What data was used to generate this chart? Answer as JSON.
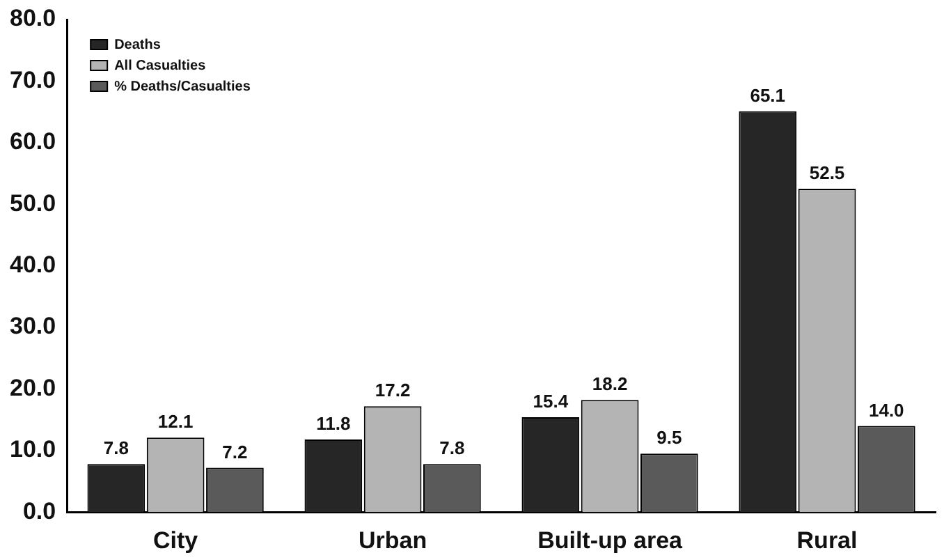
{
  "chart_data": {
    "type": "bar",
    "categories": [
      "City",
      "Urban",
      "Built-up area",
      "Rural"
    ],
    "series": [
      {
        "name": "Deaths",
        "color": "#262626",
        "values": [
          7.8,
          11.8,
          15.4,
          65.1
        ],
        "value_labels": [
          "7.8",
          "11.8",
          "15.4",
          "65.1"
        ]
      },
      {
        "name": "All Casualties",
        "color": "#b4b4b4",
        "values": [
          12.1,
          17.2,
          18.2,
          52.5
        ],
        "value_labels": [
          "12.1",
          "17.2",
          "18.2",
          "52.5"
        ]
      },
      {
        "name": "% Deaths/Casualties",
        "color": "#5a5a5a",
        "values": [
          7.2,
          7.8,
          9.5,
          14.0
        ],
        "value_labels": [
          "7.2",
          "7.8",
          "9.5",
          "14.0"
        ]
      }
    ],
    "ylim": [
      0,
      80
    ],
    "yticks": [
      {
        "value": 0,
        "label": "0.0"
      },
      {
        "value": 10,
        "label": "10.0"
      },
      {
        "value": 20,
        "label": "20.0"
      },
      {
        "value": 30,
        "label": "30.0"
      },
      {
        "value": 40,
        "label": "40.0"
      },
      {
        "value": 50,
        "label": "50.0"
      },
      {
        "value": 60,
        "label": "60.0"
      },
      {
        "value": 70,
        "label": "70.0"
      },
      {
        "value": 80,
        "label": "80.0"
      }
    ],
    "grid": false,
    "legend": "top left"
  }
}
